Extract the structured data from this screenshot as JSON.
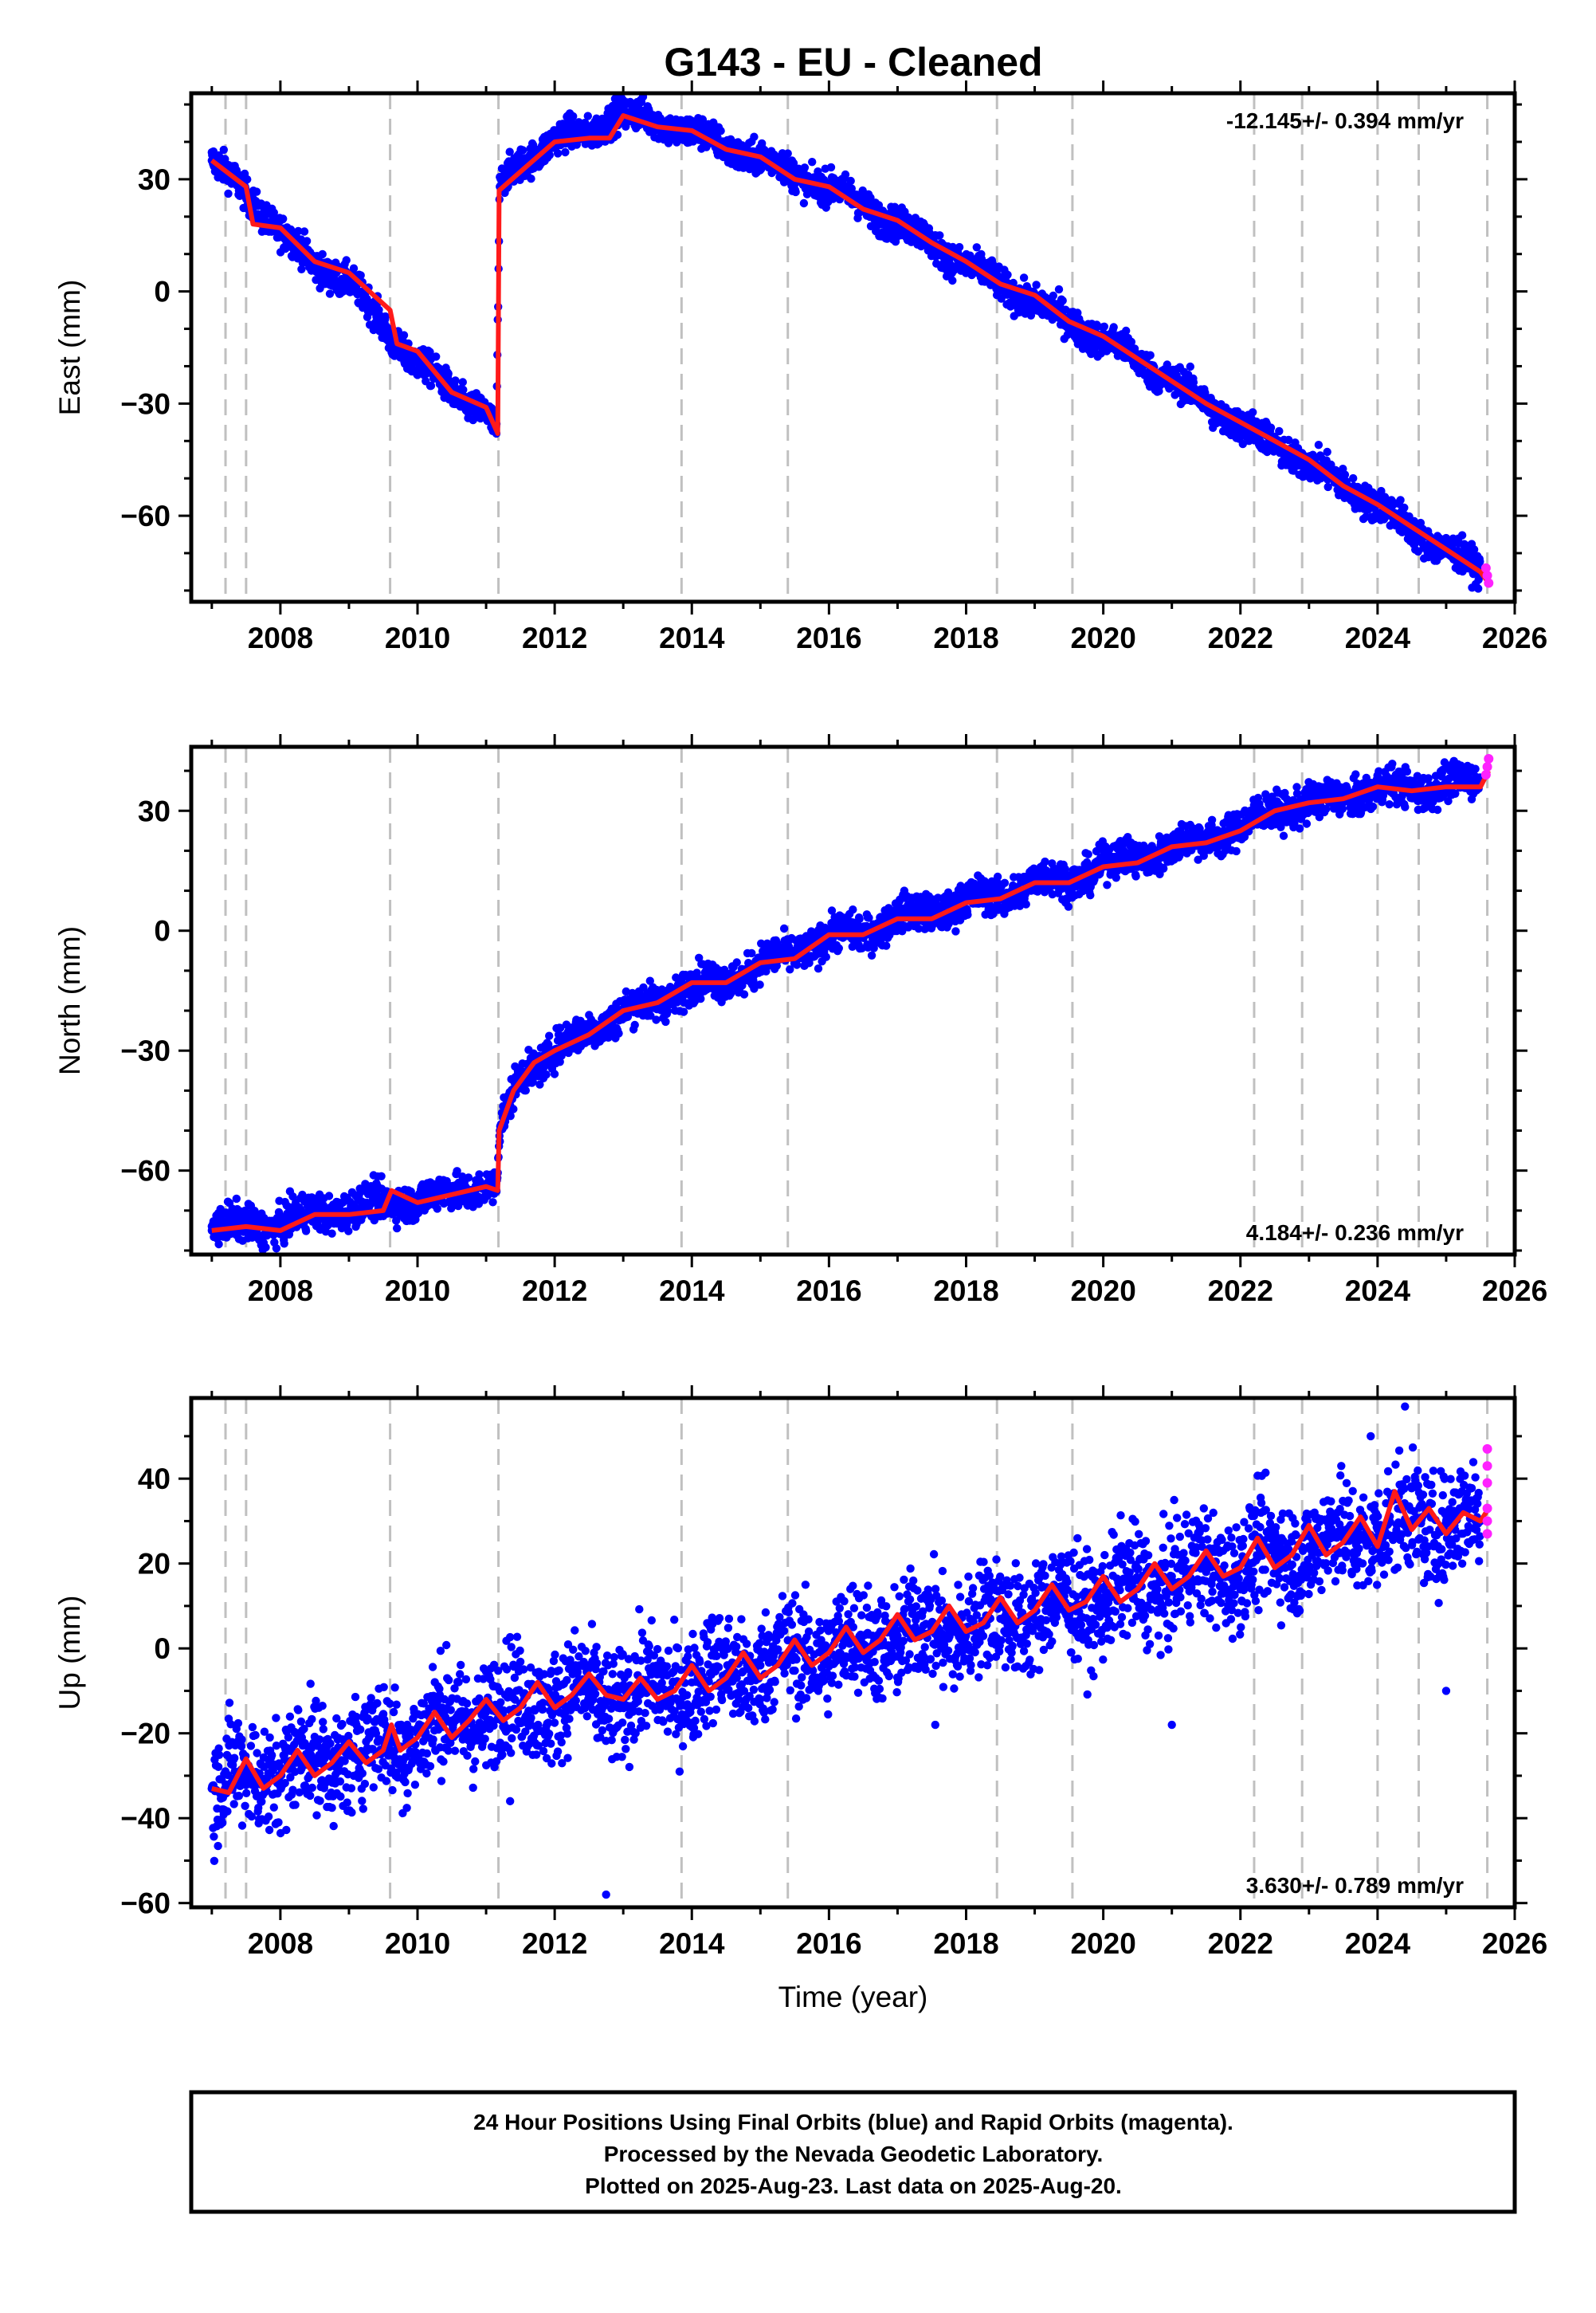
{
  "figure_title": "G143  - EU - Cleaned",
  "footer": {
    "lines": [
      "24 Hour Positions Using Final Orbits (blue) and Rapid Orbits (magenta).",
      "Processed by the Nevada Geodetic Laboratory.",
      "Plotted on 2025-Aug-23. Last data on 2025-Aug-20."
    ]
  },
  "colors": {
    "final_orbits": "#0000ff",
    "rapid_orbits": "#ff22ff",
    "model": "#ff1a1a",
    "event_lines": "#c0c0c0",
    "frame": "#000000"
  },
  "chart_data": [
    {
      "type": "scatter",
      "component": "east",
      "ylabel": "East (mm)",
      "xlabel": "",
      "rate_text": "-12.145+/- 0.394 mm/yr",
      "rate_position": "top-right",
      "xlim": [
        2006.7,
        2026.0
      ],
      "ylim": [
        -83,
        53
      ],
      "xticks": [
        2008,
        2010,
        2012,
        2014,
        2016,
        2018,
        2020,
        2022,
        2024,
        2026
      ],
      "xtick_labels": [
        "2008",
        "2010",
        "2012",
        "2014",
        "2016",
        "2018",
        "2020",
        "2022",
        "2024",
        "2026"
      ],
      "yticks": [
        -60,
        -30,
        0,
        30
      ],
      "ytick_labels": [
        "−60",
        "−30",
        "0",
        "30"
      ],
      "event_lines": [
        2007.2,
        2007.5,
        2009.6,
        2011.18,
        2013.85,
        2015.4,
        2018.45,
        2019.55,
        2022.2,
        2022.9,
        2024.0,
        2024.6,
        2025.6
      ],
      "series": [
        {
          "kind": "final_orbits_points",
          "x": [
            2007.0,
            2007.5,
            2008.0,
            2008.5,
            2009.0,
            2009.6,
            2010.0,
            2010.5,
            2011.0,
            2011.15,
            2011.2,
            2011.5,
            2012.0,
            2012.5,
            2012.9,
            2013.5,
            2014.0,
            2014.5,
            2015.0,
            2015.5,
            2016.0,
            2016.5,
            2017.0,
            2017.5,
            2018.0,
            2018.5,
            2019.0,
            2019.5,
            2020.0,
            2020.5,
            2021.0,
            2021.5,
            2022.0,
            2022.5,
            2023.0,
            2023.5,
            2024.0,
            2024.5,
            2025.0,
            2025.5
          ],
          "y": [
            35,
            26,
            16,
            7,
            3,
            -12,
            -19,
            -27,
            -32,
            -38,
            28,
            34,
            41,
            42,
            48,
            45,
            43,
            38,
            36,
            31,
            28,
            23,
            18,
            13,
            7,
            2,
            -3,
            -8,
            -13,
            -18,
            -24,
            -30,
            -36,
            -41,
            -46,
            -52,
            -57,
            -64,
            -69,
            -75
          ]
        },
        {
          "kind": "model",
          "x": [
            2007.0,
            2007.5,
            2007.6,
            2008.0,
            2008.5,
            2009.0,
            2009.6,
            2009.7,
            2010.0,
            2010.5,
            2011.0,
            2011.17,
            2011.19,
            2011.5,
            2012.0,
            2012.5,
            2012.8,
            2013.0,
            2013.5,
            2014.0,
            2014.5,
            2015.0,
            2015.5,
            2016.0,
            2016.5,
            2017.0,
            2017.5,
            2018.0,
            2018.5,
            2019.0,
            2019.5,
            2020.0,
            2020.5,
            2021.0,
            2021.5,
            2022.0,
            2022.5,
            2023.0,
            2023.5,
            2024.0,
            2024.5,
            2025.0,
            2025.5,
            2025.62
          ],
          "y": [
            35,
            28,
            18,
            17,
            8,
            5,
            -5,
            -14,
            -16,
            -27,
            -31,
            -38,
            27,
            32,
            40,
            41,
            41,
            47,
            44,
            43,
            38,
            36,
            30,
            28,
            22,
            19,
            13,
            8,
            2,
            -1,
            -8,
            -12,
            -18,
            -24,
            -30,
            -35,
            -40,
            -45,
            -52,
            -57,
            -63,
            -69,
            -75,
            -78
          ]
        },
        {
          "kind": "rapid_orbits_points",
          "x": [
            2025.58,
            2025.6,
            2025.62
          ],
          "y": [
            -74,
            -76,
            -78
          ]
        }
      ]
    },
    {
      "type": "scatter",
      "component": "north",
      "ylabel": "North (mm)",
      "xlabel": "",
      "rate_text": "4.184+/- 0.236 mm/yr",
      "rate_position": "bottom-right",
      "xlim": [
        2006.7,
        2026.0
      ],
      "ylim": [
        -81,
        46
      ],
      "xticks": [
        2008,
        2010,
        2012,
        2014,
        2016,
        2018,
        2020,
        2022,
        2024,
        2026
      ],
      "xtick_labels": [
        "2008",
        "2010",
        "2012",
        "2014",
        "2016",
        "2018",
        "2020",
        "2022",
        "2024",
        "2026"
      ],
      "yticks": [
        -60,
        -30,
        0,
        30
      ],
      "ytick_labels": [
        "−60",
        "−30",
        "0",
        "30"
      ],
      "event_lines": [
        2007.2,
        2007.5,
        2009.6,
        2011.18,
        2013.85,
        2015.4,
        2018.45,
        2019.55,
        2022.2,
        2022.9,
        2024.0,
        2024.6,
        2025.6
      ],
      "series": [
        {
          "kind": "final_orbits_points",
          "x": [
            2007.0,
            2007.5,
            2008.0,
            2008.5,
            2009.0,
            2009.6,
            2010.0,
            2010.5,
            2011.0,
            2011.15,
            2011.2,
            2011.5,
            2012.0,
            2012.5,
            2013.0,
            2013.5,
            2014.0,
            2014.5,
            2015.0,
            2015.5,
            2016.0,
            2016.5,
            2017.0,
            2017.5,
            2018.0,
            2018.5,
            2019.0,
            2019.5,
            2020.0,
            2020.5,
            2021.0,
            2021.5,
            2022.0,
            2022.5,
            2023.0,
            2023.5,
            2024.0,
            2024.5,
            2025.0,
            2025.5
          ],
          "y": [
            -75,
            -73,
            -74,
            -70,
            -70,
            -67,
            -68,
            -65,
            -64,
            -65,
            -50,
            -36,
            -30,
            -25,
            -20,
            -18,
            -13,
            -13,
            -8,
            -6,
            -1,
            -1,
            4,
            4,
            8,
            8,
            13,
            12,
            17,
            18,
            21,
            23,
            26,
            30,
            32,
            33,
            36,
            35,
            37,
            37
          ]
        },
        {
          "kind": "model",
          "x": [
            2007.0,
            2007.5,
            2008.0,
            2008.5,
            2009.0,
            2009.5,
            2009.62,
            2010.0,
            2010.5,
            2011.0,
            2011.17,
            2011.19,
            2011.4,
            2011.7,
            2012.0,
            2012.5,
            2013.0,
            2013.5,
            2014.0,
            2014.5,
            2015.0,
            2015.5,
            2016.0,
            2016.5,
            2017.0,
            2017.5,
            2018.0,
            2018.5,
            2019.0,
            2019.5,
            2020.0,
            2020.5,
            2021.0,
            2021.5,
            2022.0,
            2022.5,
            2023.0,
            2023.5,
            2024.0,
            2024.5,
            2025.0,
            2025.5,
            2025.62
          ],
          "y": [
            -75,
            -74,
            -75,
            -71,
            -71,
            -70,
            -65,
            -68,
            -66,
            -64,
            -65,
            -50,
            -40,
            -33,
            -30,
            -26,
            -20,
            -18,
            -13,
            -13,
            -8,
            -7,
            -1,
            -1,
            3,
            3,
            7,
            8,
            12,
            12,
            16,
            17,
            21,
            22,
            25,
            30,
            32,
            33,
            36,
            35,
            36,
            36,
            40
          ]
        },
        {
          "kind": "rapid_orbits_points",
          "x": [
            2025.58,
            2025.6,
            2025.62
          ],
          "y": [
            39,
            41,
            43
          ]
        }
      ]
    },
    {
      "type": "scatter",
      "component": "up",
      "ylabel": "Up (mm)",
      "xlabel": "Time (year)",
      "rate_text": "3.630+/- 0.789 mm/yr",
      "rate_position": "bottom-right",
      "xlim": [
        2006.7,
        2026.0
      ],
      "ylim": [
        -61,
        59
      ],
      "xticks": [
        2008,
        2010,
        2012,
        2014,
        2016,
        2018,
        2020,
        2022,
        2024,
        2026
      ],
      "xtick_labels": [
        "2008",
        "2010",
        "2012",
        "2014",
        "2016",
        "2018",
        "2020",
        "2022",
        "2024",
        "2026"
      ],
      "yticks": [
        -60,
        -40,
        -20,
        0,
        20,
        40
      ],
      "ytick_labels": [
        "−60",
        "−40",
        "−20",
        "0",
        "20",
        "40"
      ],
      "event_lines": [
        2007.2,
        2007.5,
        2009.6,
        2011.18,
        2013.85,
        2015.4,
        2018.45,
        2019.55,
        2022.2,
        2022.9,
        2024.0,
        2024.6,
        2025.6
      ],
      "series": [
        {
          "kind": "final_orbits_points",
          "x": [
            2007.0,
            2007.5,
            2008.0,
            2008.5,
            2009.0,
            2009.5,
            2010.0,
            2010.5,
            2011.0,
            2011.5,
            2012.0,
            2012.5,
            2013.0,
            2013.5,
            2014.0,
            2014.5,
            2015.0,
            2015.5,
            2016.0,
            2016.5,
            2017.0,
            2017.5,
            2018.0,
            2018.5,
            2019.0,
            2019.5,
            2020.0,
            2020.5,
            2021.0,
            2021.5,
            2022.0,
            2022.5,
            2023.0,
            2023.5,
            2024.0,
            2024.5,
            2025.0,
            2025.5
          ],
          "y": [
            -33,
            -30,
            -28,
            -26,
            -25,
            -22,
            -20,
            -17,
            -15,
            -13,
            -12,
            -11,
            -12,
            -10,
            -8,
            -6,
            -4,
            -2,
            0,
            1,
            3,
            4,
            5,
            7,
            9,
            10,
            12,
            14,
            17,
            18,
            20,
            22,
            24,
            26,
            28,
            30,
            30,
            30
          ]
        },
        {
          "kind": "outliers",
          "x": [
            2012.75,
            2023.9,
            2024.4,
            2011.35,
            2017.55,
            2021.0,
            2025.0
          ],
          "y": [
            -58,
            50,
            57,
            -36,
            -18,
            -18,
            -10
          ]
        },
        {
          "kind": "model",
          "x": [
            2007.0,
            2007.25,
            2007.5,
            2007.75,
            2008.0,
            2008.25,
            2008.5,
            2008.75,
            2009.0,
            2009.25,
            2009.5,
            2009.62,
            2009.75,
            2010.0,
            2010.25,
            2010.5,
            2010.75,
            2011.0,
            2011.25,
            2011.5,
            2011.75,
            2012.0,
            2012.25,
            2012.5,
            2012.75,
            2013.0,
            2013.25,
            2013.5,
            2013.75,
            2014.0,
            2014.25,
            2014.5,
            2014.75,
            2015.0,
            2015.25,
            2015.5,
            2015.75,
            2016.0,
            2016.25,
            2016.5,
            2016.75,
            2017.0,
            2017.25,
            2017.5,
            2017.75,
            2018.0,
            2018.25,
            2018.5,
            2018.75,
            2019.0,
            2019.25,
            2019.5,
            2019.75,
            2020.0,
            2020.25,
            2020.5,
            2020.75,
            2021.0,
            2021.25,
            2021.5,
            2021.75,
            2022.0,
            2022.25,
            2022.5,
            2022.75,
            2023.0,
            2023.25,
            2023.5,
            2023.75,
            2024.0,
            2024.25,
            2024.5,
            2024.75,
            2025.0,
            2025.25,
            2025.5,
            2025.62
          ],
          "y": [
            -33,
            -34,
            -26,
            -33,
            -30,
            -24,
            -30,
            -27,
            -22,
            -27,
            -24,
            -18,
            -24,
            -21,
            -15,
            -21,
            -17,
            -12,
            -17,
            -14,
            -8,
            -14,
            -11,
            -6,
            -11,
            -12,
            -7,
            -12,
            -10,
            -4,
            -10,
            -7,
            -1,
            -7,
            -4,
            2,
            -4,
            -1,
            5,
            -1,
            2,
            8,
            2,
            4,
            10,
            4,
            6,
            12,
            6,
            9,
            15,
            9,
            11,
            17,
            11,
            14,
            20,
            14,
            17,
            23,
            17,
            19,
            26,
            19,
            22,
            29,
            22,
            25,
            31,
            24,
            37,
            28,
            33,
            27,
            32,
            30,
            33
          ]
        },
        {
          "kind": "rapid_orbits_points",
          "x": [
            2025.6,
            2025.6,
            2025.6,
            2025.6,
            2025.6,
            2025.6
          ],
          "y": [
            47,
            43,
            39,
            33,
            30,
            27
          ]
        }
      ]
    }
  ]
}
